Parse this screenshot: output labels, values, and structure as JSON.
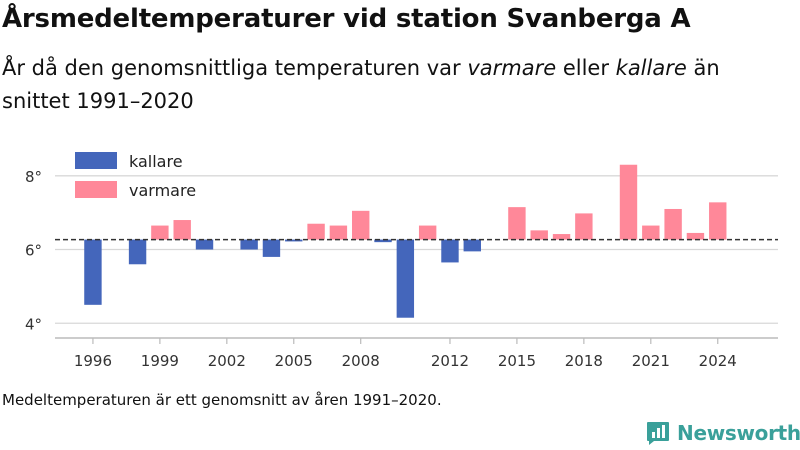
{
  "title": "Årsmedeltemperaturer vid station Svanberga A",
  "subtitle": {
    "part1": "År då den genomsnittliga temperaturen var ",
    "warm_word": "varmare",
    "part2": " eller ",
    "cold_word": "kallare",
    "part3": " än snittet 1991–2020"
  },
  "note": "Medeltemperaturen är ett genomsnitt av åren 1991–2020.",
  "brand": {
    "name": "Newsworthy",
    "color": "#3aa09a"
  },
  "colors": {
    "cold": "#4466bb",
    "warm": "#ff8899",
    "grid": "#d8d8d8",
    "axis": "#bbbbbb",
    "baseline": "#333333"
  },
  "chart_data": {
    "type": "bar",
    "baseline": 6.27,
    "ylim": [
      3.6,
      8.7
    ],
    "xlim": [
      1994.3,
      2026.7
    ],
    "yticks": [
      4,
      6,
      8
    ],
    "ytick_labels": [
      "4°",
      "6°",
      "8°"
    ],
    "xticks": [
      1996,
      1999,
      2002,
      2005,
      2008,
      2012,
      2015,
      2018,
      2021,
      2024
    ],
    "xtick_labels": [
      "1996",
      "1999",
      "2002",
      "2005",
      "2008",
      "2012",
      "2015",
      "2018",
      "2021",
      "2024"
    ],
    "legend": {
      "position": "top-left",
      "items": [
        {
          "name": "kallare",
          "key": "cold"
        },
        {
          "name": "varmare",
          "key": "warm"
        }
      ]
    },
    "x": [
      1996,
      1998,
      1999,
      2000,
      2001,
      2003,
      2004,
      2005,
      2006,
      2007,
      2008,
      2009,
      2010,
      2011,
      2012,
      2013,
      2015,
      2016,
      2017,
      2018,
      2020,
      2021,
      2022,
      2023,
      2024
    ],
    "values": [
      4.5,
      5.6,
      6.65,
      6.8,
      6.0,
      6.0,
      5.8,
      6.22,
      6.7,
      6.65,
      7.05,
      6.2,
      4.15,
      6.65,
      5.65,
      5.95,
      7.15,
      6.52,
      6.42,
      6.98,
      8.3,
      6.65,
      7.1,
      6.45,
      7.28
    ]
  }
}
